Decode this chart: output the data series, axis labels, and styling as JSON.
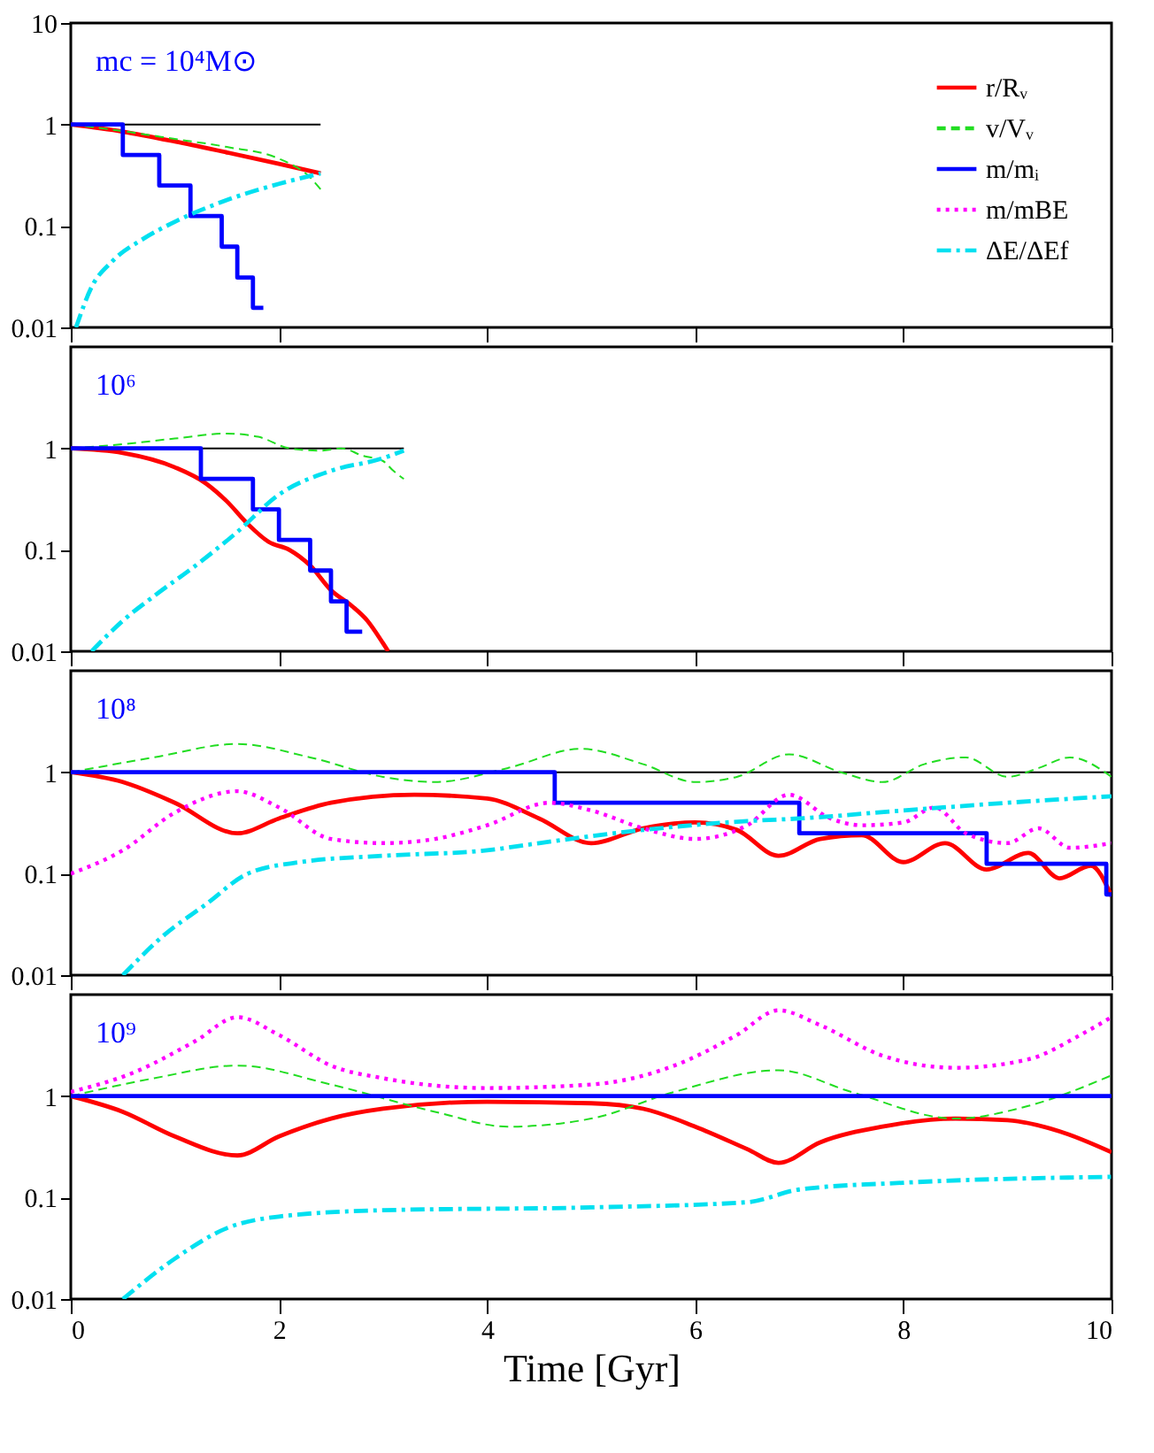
{
  "chart_data": [
    {
      "type": "line",
      "annotations": [
        "mc = 10⁴M⊙"
      ],
      "xlim": [
        0,
        10
      ],
      "xticks": [
        0,
        2,
        4,
        6,
        8,
        10
      ],
      "ylim": [
        0.01,
        10
      ],
      "yticks": [
        0.01,
        0.1,
        1,
        10
      ],
      "log": true,
      "grid": false,
      "legend": "top right",
      "tick_labels": "y",
      "marker": "none",
      "series": [
        {
          "type": "line",
          "color": "#000000",
          "line_style": "solid",
          "x": [
            0,
            2.4
          ],
          "values": [
            1,
            1
          ]
        },
        {
          "name": "r/Rᵥ",
          "type": "line",
          "color": "#ff0000",
          "line_style": "solid",
          "x": [
            0,
            0.5,
            1,
            1.5,
            2,
            2.4
          ],
          "values": [
            1,
            0.85,
            0.68,
            0.53,
            0.41,
            0.33
          ]
        },
        {
          "name": "v/Vᵥ",
          "type": "line",
          "color": "#22dd22",
          "line_style": "dashed",
          "x": [
            0,
            0.5,
            1,
            1.5,
            2,
            2.3,
            2.4
          ],
          "values": [
            1,
            0.86,
            0.72,
            0.6,
            0.46,
            0.3,
            0.23
          ]
        },
        {
          "name": "m/mᵢ",
          "type": "step",
          "color": "#0000ff",
          "line_style": "solid",
          "x": [
            0,
            0.5,
            0.85,
            1.15,
            1.45,
            1.6,
            1.75,
            1.85
          ],
          "values": [
            1,
            0.5,
            0.25,
            0.125,
            0.0625,
            0.031,
            0.0156,
            0.0156
          ]
        },
        {
          "name": "m/mBE",
          "type": "line",
          "color": "#ff00ff",
          "line_style": "dotted"
        },
        {
          "name": "ΔE/ΔEf",
          "type": "line",
          "color": "#00e0f0",
          "line_style": "dashdot",
          "x": [
            0.05,
            0.2,
            0.4,
            0.7,
            1,
            1.5,
            2,
            2.4
          ],
          "values": [
            0.01,
            0.025,
            0.045,
            0.075,
            0.11,
            0.18,
            0.26,
            0.33
          ]
        }
      ]
    },
    {
      "type": "line",
      "annotations": [
        "10⁶"
      ],
      "xlim": [
        0,
        10
      ],
      "xticks": [
        0,
        2,
        4,
        6,
        8,
        10
      ],
      "ylim": [
        0.01,
        10
      ],
      "yticks": [
        0.01,
        0.1,
        1
      ],
      "log": true,
      "grid": false,
      "legend": false,
      "tick_labels": "y",
      "marker": "none",
      "series": [
        {
          "type": "line",
          "color": "#000000",
          "line_style": "solid",
          "x": [
            0,
            3.2
          ],
          "values": [
            1,
            1
          ]
        },
        {
          "type": "line",
          "color": "#ff0000",
          "line_style": "solid",
          "x": [
            0,
            0.5,
            1,
            1.3,
            1.5,
            1.7,
            1.9,
            2.1,
            2.3,
            2.5,
            2.7,
            2.85,
            3,
            3.05
          ],
          "values": [
            1,
            0.9,
            0.65,
            0.45,
            0.3,
            0.18,
            0.12,
            0.1,
            0.07,
            0.04,
            0.028,
            0.02,
            0.012,
            0.01
          ]
        },
        {
          "type": "line",
          "color": "#22dd22",
          "line_style": "dashed",
          "x": [
            0,
            0.5,
            1,
            1.5,
            1.8,
            2.1,
            2.4,
            2.6,
            2.8,
            3,
            3.1,
            3.2
          ],
          "values": [
            1,
            1.1,
            1.25,
            1.4,
            1.3,
            1.0,
            0.95,
            1.0,
            0.85,
            0.75,
            0.6,
            0.5
          ]
        },
        {
          "type": "step",
          "color": "#0000ff",
          "line_style": "solid",
          "x": [
            0,
            1.25,
            1.75,
            2.0,
            2.3,
            2.5,
            2.65,
            2.8
          ],
          "values": [
            1,
            0.5,
            0.25,
            0.125,
            0.0625,
            0.031,
            0.0156,
            0.0156
          ]
        },
        {
          "type": "line",
          "color": "#00e0f0",
          "line_style": "dashdot",
          "x": [
            0.2,
            0.5,
            0.8,
            1.2,
            1.6,
            2,
            2.5,
            3,
            3.2
          ],
          "values": [
            0.01,
            0.02,
            0.035,
            0.07,
            0.15,
            0.35,
            0.6,
            0.8,
            0.95
          ]
        }
      ]
    },
    {
      "type": "line",
      "annotations": [
        "10⁸"
      ],
      "xlim": [
        0,
        10
      ],
      "xticks": [
        0,
        2,
        4,
        6,
        8,
        10
      ],
      "ylim": [
        0.01,
        10
      ],
      "yticks": [
        0.01,
        0.1,
        1
      ],
      "log": true,
      "grid": false,
      "legend": false,
      "tick_labels": "y",
      "marker": "none",
      "series": [
        {
          "type": "line",
          "color": "#000000",
          "line_style": "solid",
          "x": [
            0,
            10
          ],
          "values": [
            1,
            1
          ]
        },
        {
          "type": "line",
          "color": "#ff0000",
          "line_style": "solid",
          "x": [
            0,
            0.5,
            1,
            1.6,
            2,
            2.5,
            3.3,
            4,
            4.5,
            5,
            5.5,
            6,
            6.4,
            6.8,
            7.2,
            7.6,
            8,
            8.4,
            8.8,
            9.2,
            9.5,
            9.8,
            10
          ],
          "values": [
            1,
            0.8,
            0.5,
            0.25,
            0.35,
            0.5,
            0.6,
            0.55,
            0.35,
            0.2,
            0.28,
            0.32,
            0.27,
            0.15,
            0.22,
            0.24,
            0.13,
            0.2,
            0.11,
            0.16,
            0.09,
            0.12,
            0.06
          ]
        },
        {
          "type": "line",
          "color": "#22dd22",
          "line_style": "dashed",
          "x": [
            0,
            0.8,
            1.6,
            2.3,
            3,
            3.5,
            4.2,
            4.9,
            5.5,
            6,
            6.4,
            6.9,
            7.4,
            7.8,
            8.2,
            8.6,
            9,
            9.3,
            9.6,
            10
          ],
          "values": [
            1,
            1.4,
            1.9,
            1.4,
            0.9,
            0.8,
            1.1,
            1.7,
            1.2,
            0.8,
            0.9,
            1.5,
            1.0,
            0.8,
            1.2,
            1.4,
            0.9,
            1.1,
            1.4,
            0.9
          ]
        },
        {
          "type": "step",
          "color": "#0000ff",
          "line_style": "solid",
          "x": [
            0,
            4.65,
            7.0,
            8.8,
            9.95,
            10
          ],
          "values": [
            1,
            0.5,
            0.25,
            0.125,
            0.0625,
            0.0625
          ]
        },
        {
          "type": "line",
          "color": "#ff00ff",
          "line_style": "dotted",
          "x": [
            0,
            0.5,
            1,
            1.6,
            2,
            2.5,
            3,
            3.5,
            4,
            4.6,
            5,
            5.5,
            6,
            6.5,
            6.9,
            7.3,
            7.6,
            8,
            8.3,
            8.6,
            9,
            9.3,
            9.6,
            10
          ],
          "values": [
            0.1,
            0.17,
            0.4,
            0.65,
            0.45,
            0.22,
            0.2,
            0.22,
            0.3,
            0.5,
            0.42,
            0.28,
            0.22,
            0.3,
            0.6,
            0.35,
            0.3,
            0.32,
            0.45,
            0.25,
            0.2,
            0.28,
            0.18,
            0.2
          ]
        },
        {
          "type": "line",
          "color": "#00e0f0",
          "line_style": "dashdot",
          "x": [
            0.5,
            0.9,
            1.3,
            1.7,
            2.2,
            3,
            4,
            4.5,
            5.5,
            6.5,
            7,
            8,
            9,
            10
          ],
          "values": [
            0.01,
            0.025,
            0.05,
            0.1,
            0.13,
            0.15,
            0.17,
            0.2,
            0.27,
            0.33,
            0.35,
            0.42,
            0.5,
            0.58
          ]
        }
      ]
    },
    {
      "type": "line",
      "annotations": [
        "10⁹"
      ],
      "xlabel": "Time [Gyr]",
      "xlim": [
        0,
        10
      ],
      "xticks": [
        0,
        2,
        4,
        6,
        8,
        10
      ],
      "ylim": [
        0.01,
        10
      ],
      "yticks": [
        0.01,
        0.1,
        1
      ],
      "log": true,
      "grid": false,
      "legend": false,
      "marker": "none",
      "series": [
        {
          "type": "line",
          "color": "#ff0000",
          "line_style": "solid",
          "x": [
            0,
            0.5,
            1,
            1.6,
            2,
            2.5,
            3,
            4,
            5,
            5.5,
            6,
            6.5,
            6.8,
            7.2,
            7.8,
            8.5,
            9,
            9.5,
            10
          ],
          "values": [
            1,
            0.7,
            0.4,
            0.26,
            0.4,
            0.6,
            0.75,
            0.88,
            0.85,
            0.75,
            0.5,
            0.3,
            0.22,
            0.35,
            0.5,
            0.6,
            0.58,
            0.45,
            0.28
          ]
        },
        {
          "type": "line",
          "color": "#22dd22",
          "line_style": "dashed",
          "x": [
            0,
            0.8,
            1.6,
            2.5,
            3.5,
            4.2,
            5,
            5.8,
            6.8,
            7.5,
            8.5,
            9.2,
            10
          ],
          "values": [
            1,
            1.5,
            2,
            1.3,
            0.7,
            0.5,
            0.6,
            1.1,
            1.8,
            1.1,
            0.6,
            0.8,
            1.6
          ]
        },
        {
          "type": "step",
          "color": "#0000ff",
          "line_style": "solid",
          "x": [
            0,
            10
          ],
          "values": [
            1,
            1
          ]
        },
        {
          "type": "line",
          "color": "#ff00ff",
          "line_style": "dotted",
          "x": [
            0,
            0.6,
            1.2,
            1.6,
            2,
            2.5,
            3,
            4,
            5,
            5.8,
            6.4,
            6.8,
            7.2,
            7.8,
            8.5,
            9.2,
            9.7,
            10
          ],
          "values": [
            1.1,
            1.7,
            3.5,
            6,
            4,
            2,
            1.5,
            1.2,
            1.3,
            2,
            4,
            7,
            5,
            2.5,
            1.9,
            2.3,
            4,
            6
          ]
        },
        {
          "type": "line",
          "color": "#00e0f0",
          "line_style": "dashdot",
          "x": [
            0.5,
            1,
            1.5,
            2,
            3,
            5,
            6.5,
            7,
            8,
            10
          ],
          "values": [
            0.01,
            0.025,
            0.05,
            0.065,
            0.075,
            0.08,
            0.09,
            0.12,
            0.14,
            0.16
          ]
        }
      ]
    }
  ]
}
